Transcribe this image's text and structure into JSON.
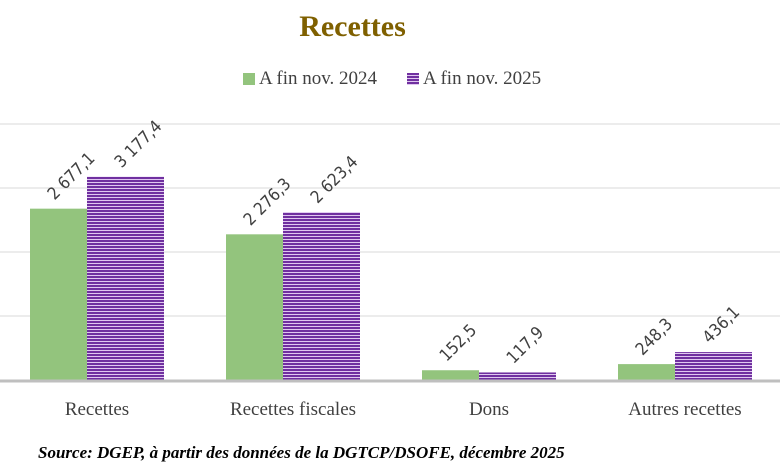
{
  "chart_data": {
    "type": "bar",
    "title": "Recettes",
    "categories": [
      "Recettes",
      "Recettes fiscales",
      "Dons",
      "Autres recettes"
    ],
    "series": [
      {
        "name": "A fin nov. 2024",
        "values": [
          2677.1,
          2276.3,
          152.5,
          248.3
        ],
        "labels": [
          "2 677,1",
          "2 276,3",
          "152,5",
          "248,3"
        ],
        "color": "#93c47d",
        "pattern": "solid"
      },
      {
        "name": "A fin nov. 2025",
        "values": [
          3177.4,
          2623.4,
          117.9,
          436.1
        ],
        "labels": [
          "3 177,4",
          "2 623,4",
          "117,9",
          "436,1"
        ],
        "color": "#7030a0",
        "pattern": "horizontal-stripes"
      }
    ],
    "ylim": [
      0,
      4000
    ],
    "ytick_step": 1000,
    "y_axis_labels_shown": false,
    "grid": true,
    "legend": "top",
    "xlabel": "",
    "ylabel": ""
  },
  "source": "Source: DGEP, à partir des données de la DGTCP/DSOFE, décembre 2025"
}
